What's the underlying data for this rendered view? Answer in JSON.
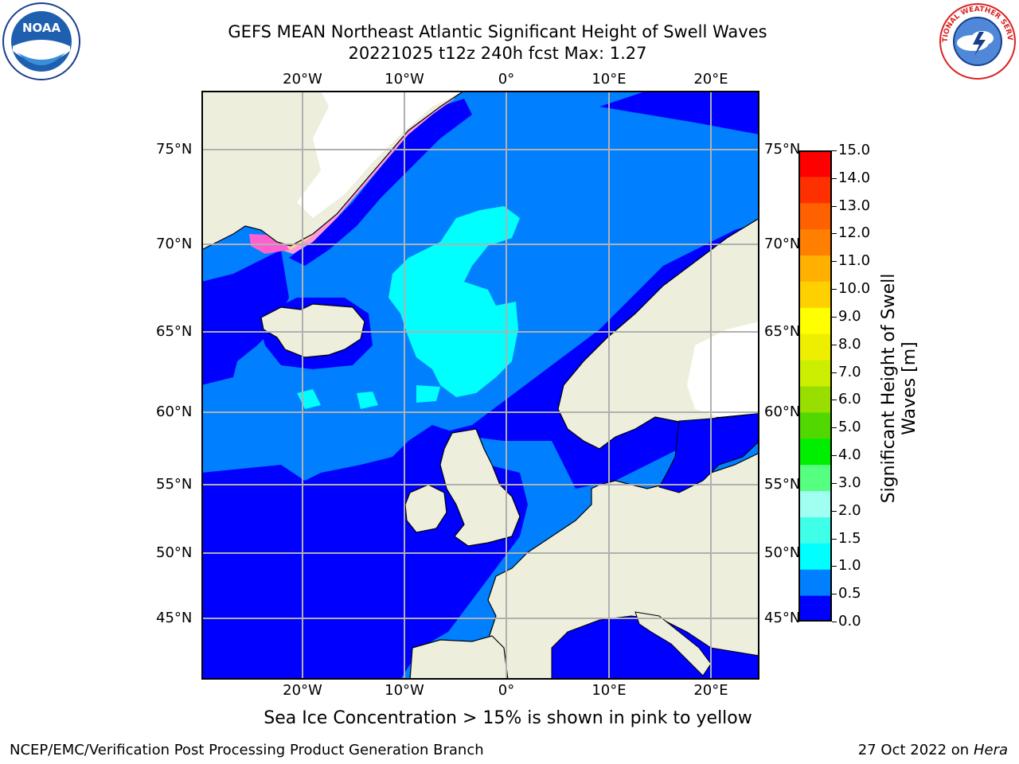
{
  "title": {
    "line1": "GEFS MEAN Northeast Atlantic Significant Height of Swell Waves",
    "line2": "20221025 t12z 240h fcst   Max: 1.27"
  },
  "map": {
    "lon_labels": [
      "20°W",
      "10°W",
      "0°",
      "10°E",
      "20°E"
    ],
    "lat_labels": [
      "75°N",
      "70°N",
      "65°N",
      "60°N",
      "55°N",
      "50°N",
      "45°N"
    ]
  },
  "colorbar": {
    "title_line1": "Significant Height of Swell",
    "title_line2": "Waves [m]",
    "ticks": [
      "15.0",
      "14.0",
      "13.0",
      "12.0",
      "11.0",
      "10.0",
      "9.0",
      "8.0",
      "7.0",
      "6.0",
      "5.0",
      "4.0",
      "3.0",
      "2.0",
      "1.5",
      "1.0",
      "0.5",
      "0.0"
    ],
    "colors_bottom_to_top": [
      "#0000ff",
      "#0080ff",
      "#00ffff",
      "#40ffe8",
      "#a0fff0",
      "#55ff80",
      "#00ee00",
      "#50d800",
      "#9ade00",
      "#ccee00",
      "#eeee00",
      "#ffff00",
      "#ffd000",
      "#ffb000",
      "#ff8000",
      "#ff6000",
      "#ff3000",
      "#ff0000"
    ]
  },
  "caption": "Sea Ice Concentration > 15% is shown in pink to yellow",
  "footer": {
    "left": "NCEP/EMC/Verification Post Processing Product Generation Branch",
    "right_date": "27 Oct 2022 on ",
    "right_host": "Hera"
  },
  "logos": {
    "noaa": "NOAA",
    "nws": "NATIONAL WEATHER SERVICE"
  },
  "colors": {
    "land": "#eeeedd",
    "ocean_low": "#0000ff",
    "ocean_mid": "#0080ff",
    "ocean_high": "#00ffff",
    "grid": "#b0b0b0"
  }
}
